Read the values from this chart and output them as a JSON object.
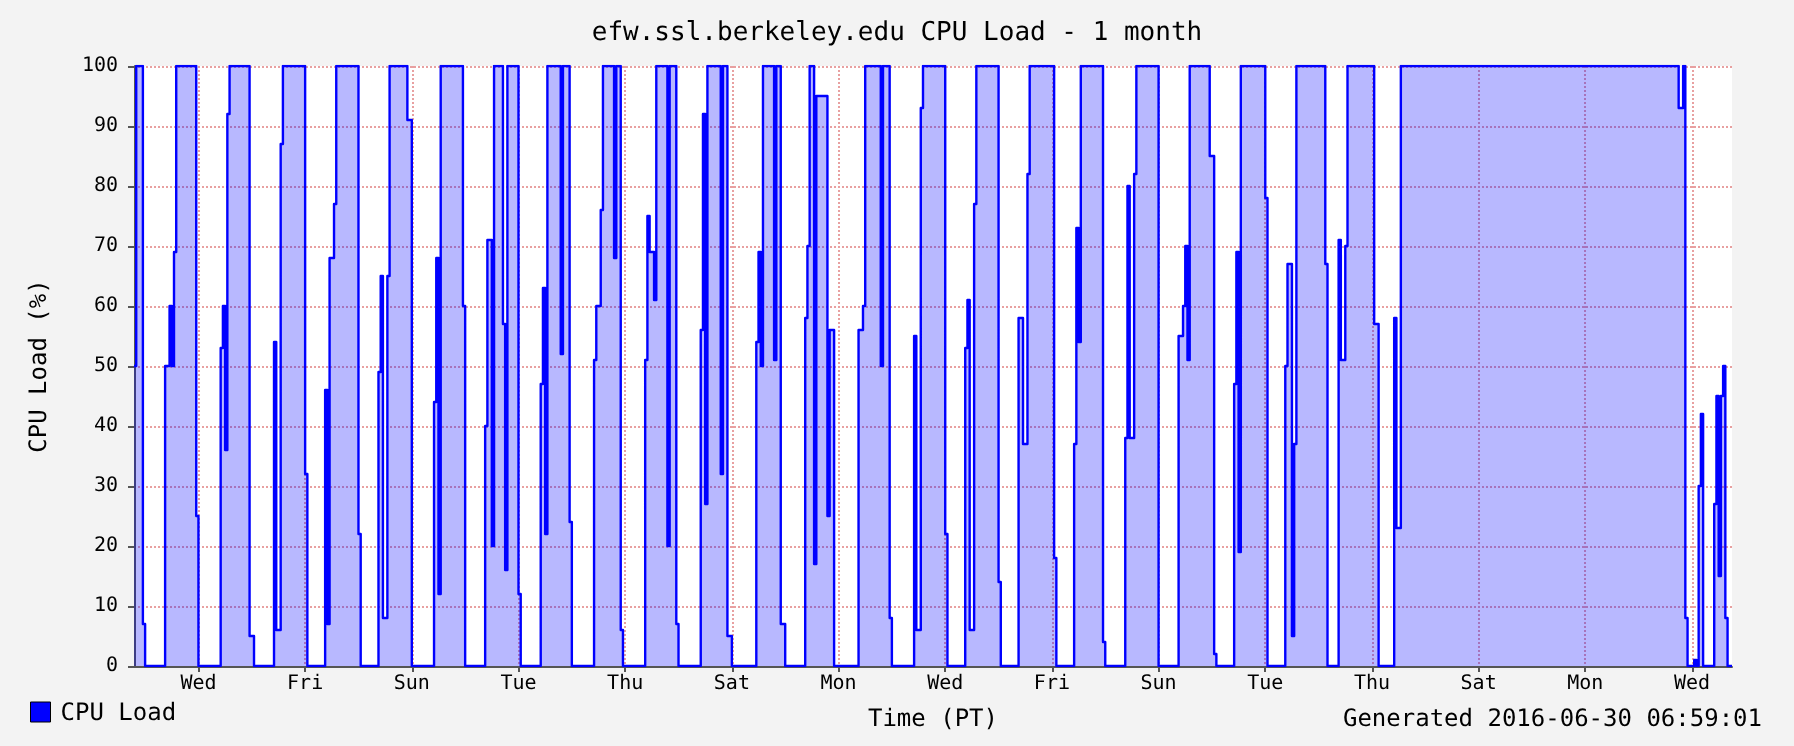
{
  "chart_data": {
    "type": "area",
    "title": "efw.ssl.berkeley.edu CPU Load - 1 month",
    "xlabel": "Time (PT)",
    "ylabel": "CPU Load (%)",
    "annotations": [
      "Generated 2016-06-30 06:59:01"
    ],
    "legend": "bottom left",
    "grid": true,
    "ylim": [
      0,
      100
    ],
    "yticks": [
      0,
      10,
      20,
      30,
      40,
      50,
      60,
      70,
      80,
      90,
      100
    ],
    "categories": [
      null,
      null,
      null,
      null,
      null,
      null,
      null,
      null,
      null,
      null,
      null,
      null,
      null,
      null,
      null,
      null,
      null,
      null,
      null,
      null,
      null,
      null,
      null,
      null,
      null,
      null,
      null,
      null,
      null,
      "Wed",
      null,
      null,
      null,
      null,
      null,
      null,
      null,
      null,
      null,
      null,
      null,
      null,
      null,
      null,
      null,
      null,
      null,
      null,
      null,
      null,
      null,
      null,
      null,
      null,
      null,
      null,
      null,
      null,
      null,
      null,
      null,
      null,
      null,
      null,
      null,
      null,
      null,
      null,
      null,
      null,
      null,
      null,
      null,
      null,
      null,
      null,
      null,
      "Fri",
      null,
      null,
      null,
      null,
      null,
      null,
      null,
      null,
      null,
      null,
      null,
      null,
      null,
      null,
      null,
      null,
      null,
      null,
      null,
      null,
      null,
      null,
      null,
      null,
      null,
      null,
      null,
      null,
      null,
      null,
      null,
      null,
      null,
      null,
      null,
      null,
      null,
      null,
      null,
      null,
      null,
      null,
      null,
      null,
      null,
      null,
      null,
      "Sun",
      null,
      null,
      null,
      null,
      null,
      null,
      null,
      null,
      null,
      null,
      null,
      null,
      null,
      null,
      null,
      null,
      null,
      null,
      null,
      null,
      null,
      null,
      null,
      null,
      null,
      null,
      null,
      null,
      null,
      null,
      null,
      null,
      null,
      null,
      null,
      null,
      null,
      null,
      null,
      null,
      null,
      null,
      null,
      null,
      null,
      null,
      null,
      "Tue",
      null,
      null,
      null,
      null,
      null,
      null,
      null,
      null,
      null,
      null,
      null,
      null,
      null,
      null,
      null,
      null,
      null,
      null,
      null,
      null,
      null,
      null,
      null,
      null,
      null,
      null,
      null,
      null,
      null,
      null,
      null,
      null,
      null,
      null,
      null,
      null,
      null,
      null,
      null,
      null,
      null,
      null,
      null,
      null,
      null,
      null,
      null,
      "Thu",
      null,
      null,
      null,
      null,
      null,
      null,
      null,
      null,
      null,
      null,
      null,
      null,
      null,
      null,
      null,
      null,
      null,
      null,
      null,
      null,
      null,
      null,
      null,
      null,
      null,
      null,
      null,
      null,
      null,
      null,
      null,
      null,
      null,
      null,
      null,
      null,
      null,
      null,
      null,
      null,
      null,
      null,
      null,
      null,
      null,
      null,
      null,
      "Sat",
      null,
      null,
      null,
      null,
      null,
      null,
      null,
      null,
      null,
      null,
      null,
      null,
      null,
      null,
      null,
      null,
      null,
      null,
      null,
      null,
      null,
      null,
      null,
      null,
      null,
      null,
      null,
      null,
      null,
      null,
      null,
      null,
      null,
      null,
      null,
      null,
      null,
      null,
      null,
      null,
      null,
      null,
      null,
      null,
      null,
      null,
      null,
      "Mon",
      null,
      null,
      null,
      null,
      null,
      null,
      null,
      null,
      null,
      null,
      null,
      null,
      null,
      null,
      null,
      null,
      null,
      null,
      null,
      null,
      null,
      null,
      null,
      null,
      null,
      null,
      null,
      null,
      null,
      null,
      null,
      null,
      null,
      null,
      null,
      null,
      null,
      null,
      null,
      null,
      null,
      null,
      null,
      null,
      null,
      null,
      null,
      "Wed",
      null,
      null,
      null,
      null,
      null,
      null,
      null,
      null,
      null,
      null,
      null,
      null,
      null,
      null,
      null,
      null,
      null,
      null,
      null,
      null,
      null,
      null,
      null,
      null,
      null,
      null,
      null,
      null,
      null,
      null,
      null,
      null,
      null,
      null,
      null,
      null,
      null,
      null,
      null,
      null,
      null,
      null,
      null,
      null,
      null,
      null,
      null,
      "Fri",
      null,
      null,
      null,
      null,
      null,
      null,
      null,
      null,
      null,
      null,
      null,
      null,
      null,
      null,
      null,
      null,
      null,
      null,
      null,
      null,
      null,
      null,
      null,
      null,
      null,
      null,
      null,
      null,
      null,
      null,
      null,
      null,
      null,
      null,
      null,
      null,
      null,
      null,
      null,
      null,
      null,
      null,
      null,
      null,
      null,
      null,
      null,
      "Sun",
      null,
      null,
      null,
      null,
      null,
      null,
      null,
      null,
      null,
      null,
      null,
      null,
      null,
      null,
      null,
      null,
      null,
      null,
      null,
      null,
      null,
      null,
      null,
      null,
      null,
      null,
      null,
      null,
      null,
      null,
      null,
      null,
      null,
      null,
      null,
      null,
      null,
      null,
      null,
      null,
      null,
      null,
      null,
      null,
      null,
      null,
      null,
      "Tue",
      null,
      null,
      null,
      null,
      null,
      null,
      null,
      null,
      null,
      null,
      null,
      null,
      null,
      null,
      null,
      null,
      null,
      null,
      null,
      null,
      null,
      null,
      null,
      null,
      null,
      null,
      null,
      null,
      null,
      null,
      null,
      null,
      null,
      null,
      null,
      null,
      null,
      null,
      null,
      null,
      null,
      null,
      null,
      null,
      null,
      null,
      null,
      "Thu",
      null,
      null,
      null,
      null,
      null,
      null,
      null,
      null,
      null,
      null,
      null,
      null,
      null,
      null,
      null,
      null,
      null,
      null,
      null,
      null,
      null,
      null,
      null,
      null,
      null,
      null,
      null,
      null,
      null,
      null,
      null,
      null,
      null,
      null,
      null,
      null,
      null,
      null,
      null,
      null,
      null,
      null,
      null,
      null,
      null,
      null,
      null,
      "Sat",
      null,
      null,
      null,
      null,
      null,
      null,
      null,
      null,
      null,
      null,
      null,
      null,
      null,
      null,
      null,
      null,
      null,
      null,
      null,
      null,
      null,
      null,
      null,
      null,
      null,
      null,
      null,
      null,
      null,
      null,
      null,
      null,
      null,
      null,
      null,
      null,
      null,
      null,
      null,
      null,
      null,
      null,
      null,
      null,
      null,
      null,
      null,
      "Mon",
      null,
      null,
      null,
      null,
      null,
      null,
      null,
      null,
      null,
      null,
      null,
      null,
      null,
      null,
      null,
      null,
      null,
      null,
      null,
      null,
      null,
      null,
      null,
      null,
      null,
      null,
      null,
      null,
      null,
      null,
      null,
      null,
      null,
      null,
      null,
      null,
      null,
      null,
      null,
      null,
      null,
      null,
      null,
      null,
      null,
      null,
      null,
      "Wed",
      null,
      null,
      null,
      null,
      null,
      null,
      null,
      null,
      null,
      null,
      null,
      null,
      null,
      null,
      null,
      null,
      null,
      null
    ],
    "series": [
      {
        "name": "CPU Load",
        "color": "#0000ff",
        "values": [
          50,
          100,
          100,
          100,
          7,
          0,
          0,
          0,
          0,
          0,
          0,
          0,
          0,
          0,
          50,
          50,
          60,
          50,
          69,
          100,
          100,
          100,
          100,
          100,
          100,
          100,
          100,
          100,
          25,
          0,
          0,
          0,
          0,
          0,
          0,
          0,
          0,
          0,
          0,
          53,
          60,
          36,
          92,
          100,
          100,
          100,
          100,
          100,
          100,
          100,
          100,
          100,
          5,
          5,
          0,
          0,
          0,
          0,
          0,
          0,
          0,
          0,
          0,
          54,
          6,
          6,
          87,
          100,
          100,
          100,
          100,
          100,
          100,
          100,
          100,
          100,
          100,
          32,
          0,
          0,
          0,
          0,
          0,
          0,
          0,
          0,
          46,
          7,
          68,
          68,
          77,
          100,
          100,
          100,
          100,
          100,
          100,
          100,
          100,
          100,
          100,
          22,
          0,
          0,
          0,
          0,
          0,
          0,
          0,
          0,
          49,
          65,
          8,
          8,
          65,
          100,
          100,
          100,
          100,
          100,
          100,
          100,
          100,
          91,
          91,
          0,
          0,
          0,
          0,
          0,
          0,
          0,
          0,
          0,
          0,
          44,
          68,
          12,
          100,
          100,
          100,
          100,
          100,
          100,
          100,
          100,
          100,
          100,
          60,
          0,
          0,
          0,
          0,
          0,
          0,
          0,
          0,
          0,
          40,
          71,
          71,
          20,
          100,
          100,
          100,
          100,
          57,
          16,
          100,
          100,
          100,
          100,
          100,
          12,
          0,
          0,
          0,
          0,
          0,
          0,
          0,
          0,
          0,
          47,
          63,
          22,
          100,
          100,
          100,
          100,
          100,
          100,
          52,
          100,
          100,
          100,
          24,
          0,
          0,
          0,
          0,
          0,
          0,
          0,
          0,
          0,
          0,
          51,
          60,
          60,
          76,
          100,
          100,
          100,
          100,
          100,
          68,
          100,
          100,
          6,
          0,
          0,
          0,
          0,
          0,
          0,
          0,
          0,
          0,
          0,
          51,
          75,
          69,
          69,
          61,
          100,
          100,
          100,
          100,
          100,
          20,
          100,
          100,
          100,
          7,
          0,
          0,
          0,
          0,
          0,
          0,
          0,
          0,
          0,
          0,
          56,
          92,
          27,
          100,
          100,
          100,
          100,
          100,
          100,
          32,
          100,
          100,
          5,
          5,
          0,
          0,
          0,
          0,
          0,
          0,
          0,
          0,
          0,
          0,
          0,
          54,
          69,
          50,
          100,
          100,
          100,
          100,
          100,
          51,
          100,
          100,
          7,
          7,
          0,
          0,
          0,
          0,
          0,
          0,
          0,
          0,
          0,
          58,
          70,
          100,
          100,
          17,
          95,
          95,
          95,
          95,
          95,
          25,
          56,
          56,
          0,
          0,
          0,
          0,
          0,
          0,
          0,
          0,
          0,
          0,
          0,
          56,
          56,
          60,
          100,
          100,
          100,
          100,
          100,
          100,
          100,
          50,
          100,
          100,
          100,
          8,
          0,
          0,
          0,
          0,
          0,
          0,
          0,
          0,
          0,
          0,
          55,
          6,
          6,
          93,
          100,
          100,
          100,
          100,
          100,
          100,
          100,
          100,
          100,
          100,
          22,
          0,
          0,
          0,
          0,
          0,
          0,
          0,
          0,
          53,
          61,
          6,
          6,
          77,
          100,
          100,
          100,
          100,
          100,
          100,
          100,
          100,
          100,
          100,
          14,
          0,
          0,
          0,
          0,
          0,
          0,
          0,
          0,
          58,
          58,
          37,
          37,
          82,
          100,
          100,
          100,
          100,
          100,
          100,
          100,
          100,
          100,
          100,
          100,
          18,
          0,
          0,
          0,
          0,
          0,
          0,
          0,
          0,
          37,
          73,
          54,
          100,
          100,
          100,
          100,
          100,
          100,
          100,
          100,
          100,
          100,
          4,
          0,
          0,
          0,
          0,
          0,
          0,
          0,
          0,
          0,
          38,
          80,
          38,
          38,
          82,
          100,
          100,
          100,
          100,
          100,
          100,
          100,
          100,
          100,
          100,
          0,
          0,
          0,
          0,
          0,
          0,
          0,
          0,
          0,
          55,
          55,
          60,
          70,
          51,
          100,
          100,
          100,
          100,
          100,
          100,
          100,
          100,
          100,
          85,
          85,
          2,
          0,
          0,
          0,
          0,
          0,
          0,
          0,
          0,
          47,
          69,
          19,
          100,
          100,
          100,
          100,
          100,
          100,
          100,
          100,
          100,
          100,
          100,
          78,
          0,
          0,
          0,
          0,
          0,
          0,
          0,
          0,
          50,
          67,
          67,
          5,
          37,
          100,
          100,
          100,
          100,
          100,
          100,
          100,
          100,
          100,
          100,
          100,
          100,
          100,
          67,
          0,
          0,
          0,
          0,
          0,
          71,
          51,
          51,
          70,
          100,
          100,
          100,
          100,
          100,
          100,
          100,
          100,
          100,
          100,
          100,
          100,
          57,
          57,
          0,
          0,
          0,
          0,
          0,
          0,
          0,
          58,
          23,
          23,
          100,
          100,
          100,
          100,
          100,
          100,
          100,
          100,
          100,
          100,
          100,
          100,
          100,
          100,
          100,
          100,
          100,
          100,
          100,
          100,
          100,
          100,
          100,
          100,
          100,
          100,
          100,
          100,
          100,
          100,
          100,
          100,
          100,
          100,
          100,
          100,
          100,
          100,
          100,
          100,
          100,
          100,
          100,
          100,
          100,
          100,
          100,
          100,
          100,
          100,
          100,
          100,
          100,
          100,
          100,
          100,
          100,
          100,
          100,
          100,
          100,
          100,
          100,
          100,
          100,
          100,
          100,
          100,
          100,
          100,
          100,
          100,
          100,
          100,
          100,
          100,
          100,
          100,
          100,
          100,
          100,
          100,
          100,
          100,
          100,
          100,
          100,
          100,
          100,
          100,
          100,
          100,
          100,
          100,
          100,
          100,
          100,
          100,
          100,
          100,
          100,
          100,
          100,
          100,
          100,
          100,
          100,
          100,
          100,
          100,
          100,
          100,
          100,
          100,
          100,
          100,
          100,
          100,
          100,
          100,
          100,
          100,
          100,
          100,
          100,
          93,
          93,
          100,
          8,
          0,
          0,
          0,
          1,
          0,
          30,
          42,
          0,
          0,
          0,
          0,
          0,
          27,
          45,
          15,
          45,
          50,
          8,
          0,
          0,
          0
        ]
      }
    ]
  }
}
